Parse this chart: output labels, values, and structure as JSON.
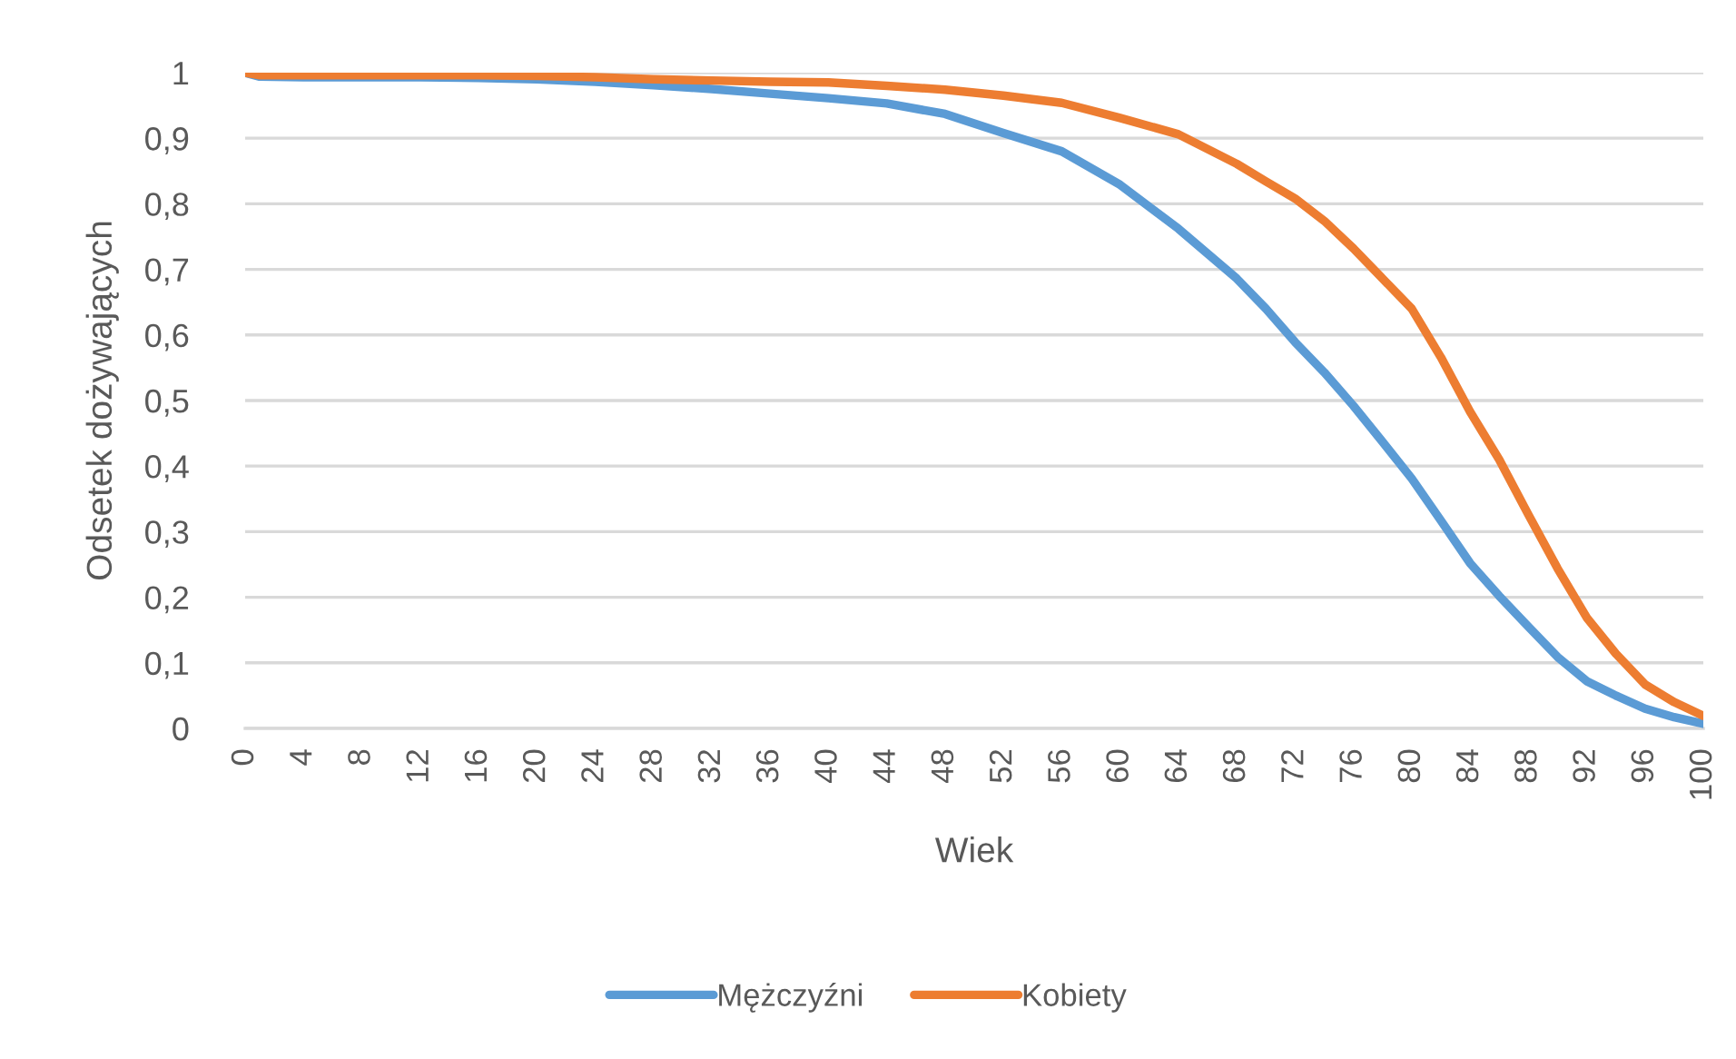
{
  "chart_data": {
    "type": "line",
    "xlabel": "Wiek",
    "ylabel": "Odsetek dożywających",
    "x": [
      0,
      1,
      4,
      8,
      12,
      16,
      20,
      24,
      28,
      32,
      36,
      40,
      44,
      48,
      52,
      56,
      60,
      64,
      68,
      70,
      72,
      74,
      76,
      78,
      80,
      82,
      84,
      86,
      88,
      90,
      92,
      94,
      96,
      98,
      100
    ],
    "series": [
      {
        "name": "Mężczyźni",
        "color": "#5b9bd5",
        "values": [
          1.0,
          0.994,
          0.993,
          0.993,
          0.993,
          0.992,
          0.99,
          0.986,
          0.981,
          0.975,
          0.968,
          0.961,
          0.953,
          0.937,
          0.908,
          0.88,
          0.829,
          0.762,
          0.686,
          0.64,
          0.589,
          0.543,
          0.492,
          0.437,
          0.381,
          0.317,
          0.252,
          0.202,
          0.155,
          0.109,
          0.072,
          0.05,
          0.03,
          0.017,
          0.007
        ]
      },
      {
        "name": "Kobiety",
        "color": "#ed7d31",
        "values": [
          1.0,
          0.996,
          0.996,
          0.996,
          0.996,
          0.996,
          0.995,
          0.993,
          0.99,
          0.988,
          0.986,
          0.985,
          0.98,
          0.974,
          0.965,
          0.954,
          0.931,
          0.906,
          0.861,
          0.834,
          0.808,
          0.774,
          0.732,
          0.686,
          0.64,
          0.566,
          0.483,
          0.41,
          0.326,
          0.244,
          0.169,
          0.114,
          0.067,
          0.04,
          0.019
        ]
      }
    ],
    "xlim": [
      0,
      100
    ],
    "xticks": [
      0,
      4,
      8,
      12,
      16,
      20,
      24,
      28,
      32,
      36,
      40,
      44,
      48,
      52,
      56,
      60,
      64,
      68,
      72,
      76,
      80,
      84,
      88,
      92,
      96,
      100
    ],
    "ylim": [
      0,
      1
    ],
    "yticks": [
      0,
      {
        "value": 0.1,
        "label": "0,1"
      },
      {
        "value": 0.2,
        "label": "0,2"
      },
      {
        "value": 0.3,
        "label": "0,3"
      },
      {
        "value": 0.4,
        "label": "0,4"
      },
      {
        "value": 0.5,
        "label": "0,5"
      },
      {
        "value": 0.6,
        "label": "0,6"
      },
      {
        "value": 0.7,
        "label": "0,7"
      },
      {
        "value": 0.8,
        "label": "0,8"
      },
      {
        "value": 0.9,
        "label": "0,9"
      },
      1
    ],
    "grid": "y",
    "legend": "bottom",
    "marker": "none",
    "line_style": "solid"
  }
}
